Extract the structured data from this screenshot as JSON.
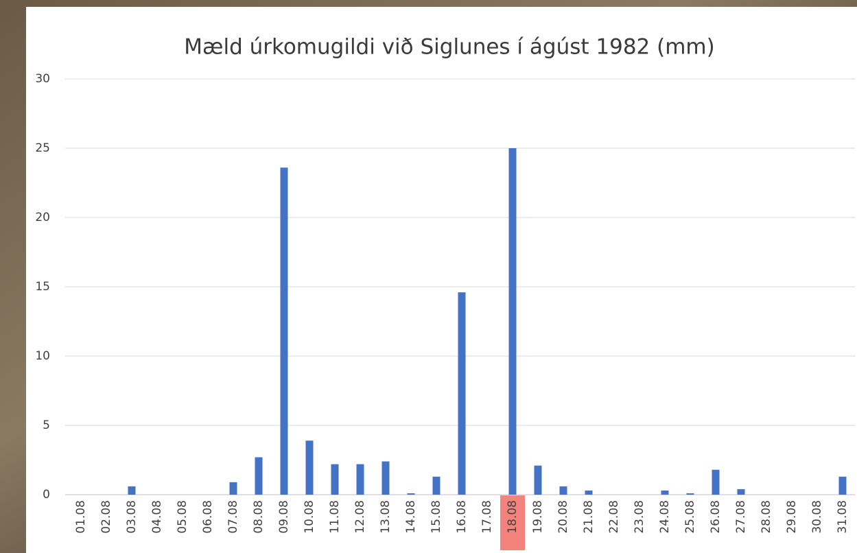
{
  "chart_data": {
    "type": "bar",
    "title": "Mæld úrkomugildi við Siglunes í ágúst 1982 (mm)",
    "categories": [
      "01.08",
      "02.08",
      "03.08",
      "04.08",
      "05.08",
      "06.08",
      "07.08",
      "08.08",
      "09.08",
      "10.08",
      "11.08",
      "12.08",
      "13.08",
      "14.08",
      "15.08",
      "16.08",
      "17.08",
      "18.08",
      "19.08",
      "20.08",
      "21.08",
      "22.08",
      "23.08",
      "24.08",
      "25.08",
      "26.08",
      "27.08",
      "28.08",
      "29.08",
      "30.08",
      "31.08"
    ],
    "values": [
      0,
      0,
      0.6,
      0,
      0,
      0,
      0.9,
      2.7,
      23.6,
      3.9,
      2.2,
      2.2,
      2.4,
      0.1,
      1.3,
      14.6,
      0,
      25,
      2.1,
      0.6,
      0.3,
      0,
      0,
      0.3,
      0.1,
      1.8,
      0.4,
      0,
      0,
      0,
      1.3
    ],
    "color": "#4472c4",
    "ylim": [
      0,
      30
    ],
    "yticks": [
      0,
      5,
      10,
      15,
      20,
      25,
      30
    ],
    "grid": true,
    "highlight": {
      "category": "18.08",
      "color": "#f4837d"
    }
  }
}
